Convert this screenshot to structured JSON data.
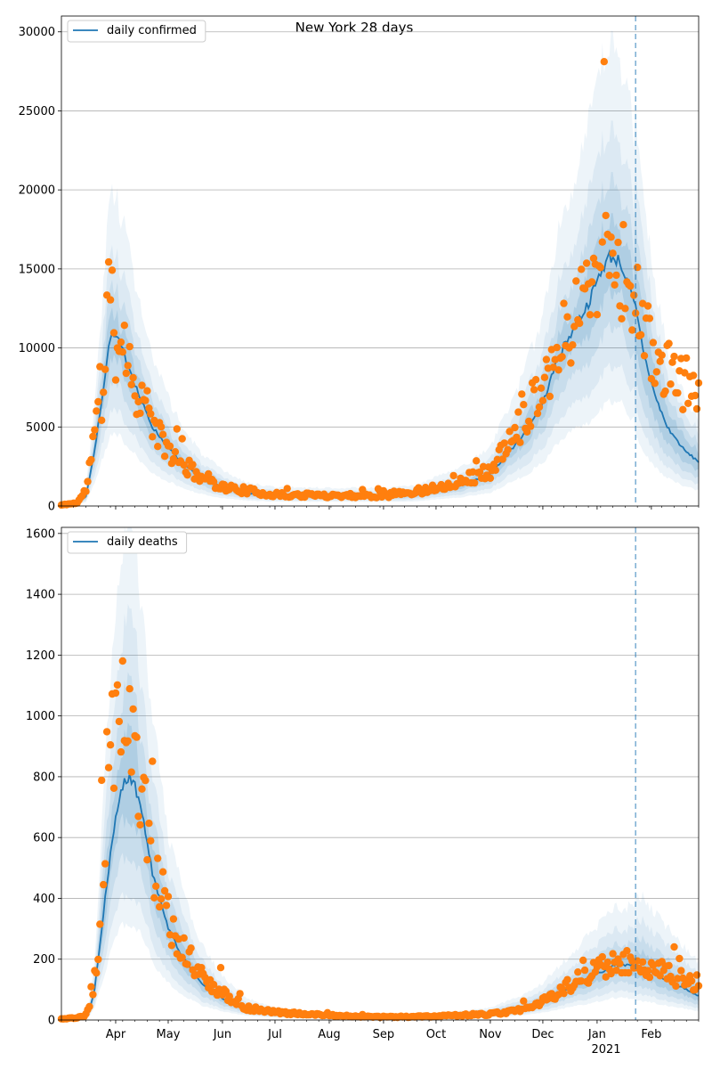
{
  "figure_title": "New York 28 days",
  "x_axis": {
    "month_ticks": [
      "Apr",
      "May",
      "Jun",
      "Jul",
      "Aug",
      "Sep",
      "Oct",
      "Nov",
      "Dec",
      "Jan",
      "Feb"
    ],
    "year_label": "2021"
  },
  "chart_data": [
    {
      "type": "line",
      "title": "New York 28 days",
      "legend": "daily confirmed",
      "legend_position": "upper-left",
      "xlabel": "",
      "ylabel": "",
      "x_range": [
        "2020-03-01",
        "2021-02-28"
      ],
      "ylim": [
        0,
        31000
      ],
      "yticks": [
        0,
        5000,
        10000,
        15000,
        20000,
        25000,
        30000
      ],
      "grid": "horizontal",
      "forecast_start": "2021-01-23",
      "colors": {
        "median": "#1f77b4",
        "observed": "#ff7f0e",
        "band": "#1f77b4"
      },
      "median_keypoints": [
        [
          "2020-03-01",
          50
        ],
        [
          "2020-03-10",
          150
        ],
        [
          "2020-03-15",
          600
        ],
        [
          "2020-03-20",
          3500
        ],
        [
          "2020-03-25",
          7500
        ],
        [
          "2020-03-29",
          10800
        ],
        [
          "2020-04-02",
          10600
        ],
        [
          "2020-04-08",
          9000
        ],
        [
          "2020-04-15",
          6800
        ],
        [
          "2020-04-22",
          5000
        ],
        [
          "2020-05-01",
          3700
        ],
        [
          "2020-05-10",
          2600
        ],
        [
          "2020-05-20",
          1800
        ],
        [
          "2020-06-01",
          1200
        ],
        [
          "2020-06-15",
          800
        ],
        [
          "2020-07-01",
          650
        ],
        [
          "2020-08-01",
          620
        ],
        [
          "2020-09-01",
          620
        ],
        [
          "2020-09-20",
          700
        ],
        [
          "2020-10-01",
          1000
        ],
        [
          "2020-10-15",
          1300
        ],
        [
          "2020-11-01",
          2000
        ],
        [
          "2020-11-10",
          3200
        ],
        [
          "2020-11-20",
          4500
        ],
        [
          "2020-12-01",
          6500
        ],
        [
          "2020-12-10",
          9500
        ],
        [
          "2020-12-20",
          11500
        ],
        [
          "2020-12-27",
          12800
        ],
        [
          "2021-01-03",
          14800
        ],
        [
          "2021-01-08",
          15800
        ],
        [
          "2021-01-14",
          15500
        ],
        [
          "2021-01-18",
          14200
        ],
        [
          "2021-01-23",
          12500
        ],
        [
          "2021-01-28",
          9500
        ],
        [
          "2021-02-03",
          7000
        ],
        [
          "2021-02-10",
          5000
        ],
        [
          "2021-02-20",
          3500
        ],
        [
          "2021-02-28",
          2800
        ]
      ],
      "band_ratios": [
        [
          0.86,
          1.14
        ],
        [
          0.72,
          1.3
        ],
        [
          0.56,
          1.5
        ],
        [
          0.42,
          1.85
        ]
      ],
      "band_ratios_forecast": [
        [
          0.78,
          1.25
        ],
        [
          0.62,
          1.45
        ],
        [
          0.48,
          1.7
        ],
        [
          0.35,
          2.0
        ]
      ],
      "band_opacity": [
        0.14,
        0.1,
        0.08,
        0.08
      ],
      "observed_keypoints": [
        [
          "2020-03-01",
          60
        ],
        [
          "2020-03-10",
          200
        ],
        [
          "2020-03-15",
          1000
        ],
        [
          "2020-03-20",
          4700
        ],
        [
          "2020-03-25",
          7200
        ],
        [
          "2020-03-28",
          14500
        ],
        [
          "2020-04-01",
          10000
        ],
        [
          "2020-04-05",
          11500
        ],
        [
          "2020-04-10",
          8000
        ],
        [
          "2020-04-18",
          6500
        ],
        [
          "2020-04-25",
          4500
        ],
        [
          "2020-05-05",
          3000
        ],
        [
          "2020-05-15",
          2200
        ],
        [
          "2020-06-01",
          1200
        ],
        [
          "2020-07-01",
          700
        ],
        [
          "2020-09-01",
          650
        ],
        [
          "2020-10-01",
          1100
        ],
        [
          "2020-11-01",
          2200
        ],
        [
          "2020-11-15",
          4500
        ],
        [
          "2020-12-01",
          8000
        ],
        [
          "2020-12-15",
          11000
        ],
        [
          "2021-01-01",
          15500
        ],
        [
          "2021-01-08",
          17000
        ],
        [
          "2021-01-15",
          15000
        ],
        [
          "2021-01-22",
          13500
        ],
        [
          "2021-01-28",
          11000
        ],
        [
          "2021-02-05",
          9000
        ],
        [
          "2021-02-15",
          8000
        ],
        [
          "2021-02-28",
          7500
        ]
      ]
    },
    {
      "type": "line",
      "title": "",
      "legend": "daily deaths",
      "legend_position": "upper-left",
      "xlabel": "",
      "ylabel": "",
      "x_range": [
        "2020-03-01",
        "2021-02-28"
      ],
      "ylim": [
        0,
        1620
      ],
      "yticks": [
        0,
        200,
        400,
        600,
        800,
        1000,
        1200,
        1400,
        1600
      ],
      "grid": "horizontal",
      "forecast_start": "2021-01-23",
      "colors": {
        "median": "#1f77b4",
        "observed": "#ff7f0e",
        "band": "#1f77b4"
      },
      "median_keypoints": [
        [
          "2020-03-01",
          3
        ],
        [
          "2020-03-12",
          5
        ],
        [
          "2020-03-17",
          30
        ],
        [
          "2020-03-20",
          100
        ],
        [
          "2020-03-25",
          350
        ],
        [
          "2020-03-30",
          600
        ],
        [
          "2020-04-04",
          760
        ],
        [
          "2020-04-08",
          800
        ],
        [
          "2020-04-12",
          770
        ],
        [
          "2020-04-17",
          650
        ],
        [
          "2020-04-22",
          480
        ],
        [
          "2020-05-01",
          300
        ],
        [
          "2020-05-10",
          200
        ],
        [
          "2020-05-20",
          120
        ],
        [
          "2020-06-01",
          70
        ],
        [
          "2020-06-15",
          35
        ],
        [
          "2020-07-01",
          20
        ],
        [
          "2020-08-01",
          10
        ],
        [
          "2020-09-01",
          8
        ],
        [
          "2020-10-01",
          10
        ],
        [
          "2020-11-01",
          20
        ],
        [
          "2020-11-20",
          40
        ],
        [
          "2020-12-01",
          60
        ],
        [
          "2020-12-15",
          100
        ],
        [
          "2021-01-01",
          150
        ],
        [
          "2021-01-10",
          180
        ],
        [
          "2021-01-20",
          180
        ],
        [
          "2021-01-28",
          170
        ],
        [
          "2021-02-10",
          130
        ],
        [
          "2021-02-28",
          80
        ]
      ],
      "band_ratios": [
        [
          0.84,
          1.18
        ],
        [
          0.68,
          1.38
        ],
        [
          0.52,
          1.65
        ],
        [
          0.4,
          2.05
        ]
      ],
      "band_ratios_forecast": [
        [
          0.78,
          1.3
        ],
        [
          0.62,
          1.55
        ],
        [
          0.48,
          1.9
        ],
        [
          0.36,
          2.35
        ]
      ],
      "band_opacity": [
        0.14,
        0.1,
        0.08,
        0.08
      ],
      "observed_keypoints": [
        [
          "2020-03-01",
          3
        ],
        [
          "2020-03-14",
          10
        ],
        [
          "2020-03-18",
          60
        ],
        [
          "2020-03-22",
          240
        ],
        [
          "2020-03-26",
          620
        ],
        [
          "2020-03-30",
          900
        ],
        [
          "2020-04-05",
          1000
        ],
        [
          "2020-04-10",
          900
        ],
        [
          "2020-04-15",
          800
        ],
        [
          "2020-04-20",
          580
        ],
        [
          "2020-04-26",
          450
        ],
        [
          "2020-05-03",
          300
        ],
        [
          "2020-05-10",
          230
        ],
        [
          "2020-05-20",
          150
        ],
        [
          "2020-06-01",
          90
        ],
        [
          "2020-06-15",
          40
        ],
        [
          "2020-07-01",
          25
        ],
        [
          "2020-08-01",
          15
        ],
        [
          "2020-09-01",
          10
        ],
        [
          "2020-10-01",
          12
        ],
        [
          "2020-11-01",
          20
        ],
        [
          "2020-11-20",
          35
        ],
        [
          "2020-12-01",
          60
        ],
        [
          "2020-12-15",
          110
        ],
        [
          "2021-01-01",
          165
        ],
        [
          "2021-01-15",
          190
        ],
        [
          "2021-01-28",
          185
        ],
        [
          "2021-02-10",
          150
        ],
        [
          "2021-02-28",
          120
        ]
      ]
    }
  ]
}
